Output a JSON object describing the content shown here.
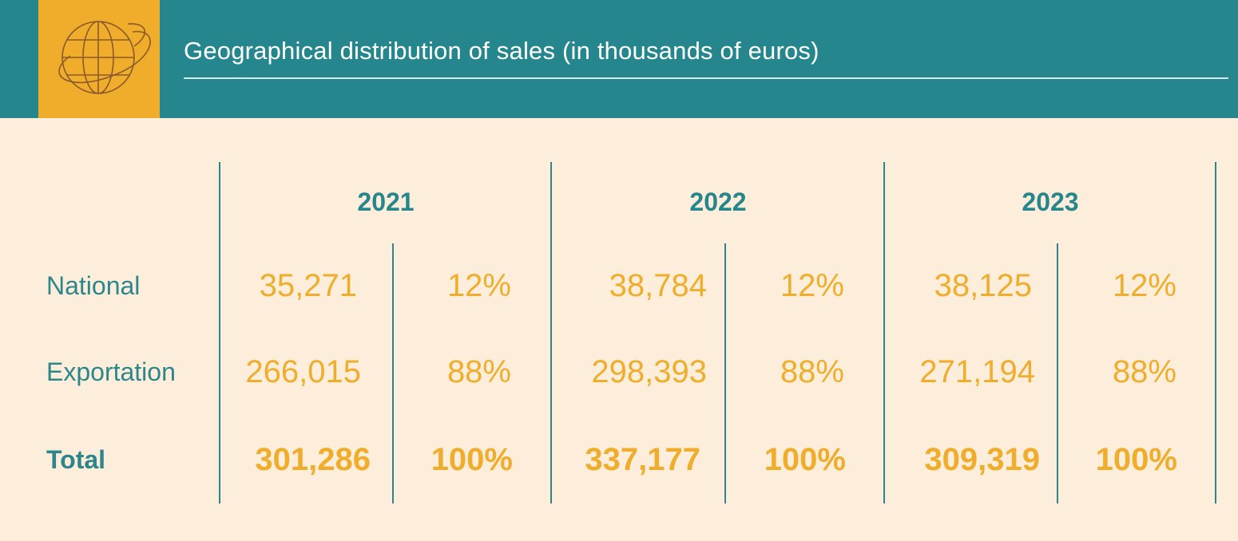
{
  "header": {
    "title": "Geographical distribution of sales (in thousands of euros)",
    "icon": "globe-icon"
  },
  "colors": {
    "header_bg": "#25878d",
    "icon_bg": "#efad2b",
    "page_bg": "#fdeedb",
    "label_teal": "#2c868c",
    "value_gold": "#efad2b"
  },
  "chart_data": {
    "type": "table",
    "title": "Geographical distribution of sales (in thousands of euros)",
    "years": [
      "2021",
      "2022",
      "2023"
    ],
    "rows": [
      {
        "label": "National",
        "values": [
          "35,271",
          "38,784",
          "38,125"
        ],
        "percents": [
          "12%",
          "12%",
          "12%"
        ]
      },
      {
        "label": "Exportation",
        "values": [
          "266,015",
          "298,393",
          "271,194"
        ],
        "percents": [
          "88%",
          "88%",
          "88%"
        ]
      },
      {
        "label": "Total",
        "values": [
          "301,286",
          "337,177",
          "309,319"
        ],
        "percents": [
          "100%",
          "100%",
          "100%"
        ]
      }
    ]
  }
}
